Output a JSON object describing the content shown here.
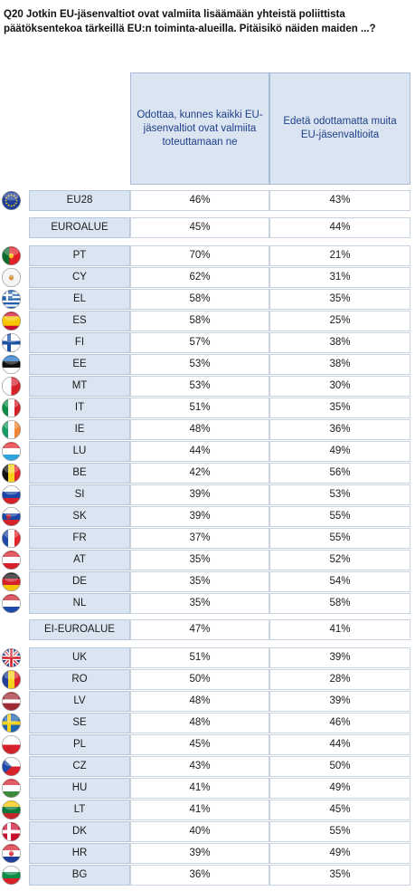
{
  "title": "Q20 Jotkin EU-jäsenvaltiot ovat valmiita lisäämään yhteistä poliittista päätöksentekoa tärkeillä EU:n toiminta-alueilla. Pitäisikö näiden maiden ...?",
  "columns": [
    "Odottaa, kunnes kaikki EU-jäsenvaltiot ovat valmiita toteuttamaan ne",
    "Edetä odottamatta muita EU-jäsenvaltioita"
  ],
  "chart_data": {
    "type": "table",
    "title": "Q20 Jotkin EU-jäsenvaltiot ovat valmiita lisäämään yhteistä poliittista päätöksentekoa tärkeillä EU:n toiminta-alueilla. Pitäisikö näiden maiden ...?",
    "columns": [
      "Odottaa, kunnes kaikki EU-jäsenvaltiot ovat valmiita toteuttamaan ne",
      "Edetä odottamatta muita EU-jäsenvaltioita"
    ],
    "rows": [
      {
        "label": "EU28",
        "flag": "eu",
        "values": [
          "46%",
          "43%"
        ]
      },
      {
        "label": "EUROALUE",
        "flag": "",
        "values": [
          "45%",
          "44%"
        ]
      },
      {
        "label": "PT",
        "flag": "pt",
        "values": [
          "70%",
          "21%"
        ]
      },
      {
        "label": "CY",
        "flag": "cy",
        "values": [
          "62%",
          "31%"
        ]
      },
      {
        "label": "EL",
        "flag": "el",
        "values": [
          "58%",
          "35%"
        ]
      },
      {
        "label": "ES",
        "flag": "es",
        "values": [
          "58%",
          "25%"
        ]
      },
      {
        "label": "FI",
        "flag": "fi",
        "values": [
          "57%",
          "38%"
        ]
      },
      {
        "label": "EE",
        "flag": "ee",
        "values": [
          "53%",
          "38%"
        ]
      },
      {
        "label": "MT",
        "flag": "mt",
        "values": [
          "53%",
          "30%"
        ]
      },
      {
        "label": "IT",
        "flag": "it",
        "values": [
          "51%",
          "35%"
        ]
      },
      {
        "label": "IE",
        "flag": "ie",
        "values": [
          "48%",
          "36%"
        ]
      },
      {
        "label": "LU",
        "flag": "lu",
        "values": [
          "44%",
          "49%"
        ]
      },
      {
        "label": "BE",
        "flag": "be",
        "values": [
          "42%",
          "56%"
        ]
      },
      {
        "label": "SI",
        "flag": "si",
        "values": [
          "39%",
          "53%"
        ]
      },
      {
        "label": "SK",
        "flag": "sk",
        "values": [
          "39%",
          "55%"
        ]
      },
      {
        "label": "FR",
        "flag": "fr",
        "values": [
          "37%",
          "55%"
        ]
      },
      {
        "label": "AT",
        "flag": "at",
        "values": [
          "35%",
          "52%"
        ]
      },
      {
        "label": "DE",
        "flag": "de",
        "values": [
          "35%",
          "54%"
        ]
      },
      {
        "label": "NL",
        "flag": "nl",
        "values": [
          "35%",
          "58%"
        ]
      },
      {
        "label": "EI-EUROALUE",
        "flag": "",
        "values": [
          "47%",
          "41%"
        ]
      },
      {
        "label": "UK",
        "flag": "uk",
        "values": [
          "51%",
          "39%"
        ]
      },
      {
        "label": "RO",
        "flag": "ro",
        "values": [
          "50%",
          "28%"
        ]
      },
      {
        "label": "LV",
        "flag": "lv",
        "values": [
          "48%",
          "39%"
        ]
      },
      {
        "label": "SE",
        "flag": "se",
        "values": [
          "48%",
          "46%"
        ]
      },
      {
        "label": "PL",
        "flag": "pl",
        "values": [
          "45%",
          "44%"
        ]
      },
      {
        "label": "CZ",
        "flag": "cz",
        "values": [
          "43%",
          "50%"
        ]
      },
      {
        "label": "HU",
        "flag": "hu",
        "values": [
          "41%",
          "49%"
        ]
      },
      {
        "label": "LT",
        "flag": "lt",
        "values": [
          "41%",
          "45%"
        ]
      },
      {
        "label": "DK",
        "flag": "dk",
        "values": [
          "40%",
          "55%"
        ]
      },
      {
        "label": "HR",
        "flag": "hr",
        "values": [
          "39%",
          "49%"
        ]
      },
      {
        "label": "BG",
        "flag": "bg",
        "values": [
          "36%",
          "35%"
        ]
      }
    ]
  }
}
